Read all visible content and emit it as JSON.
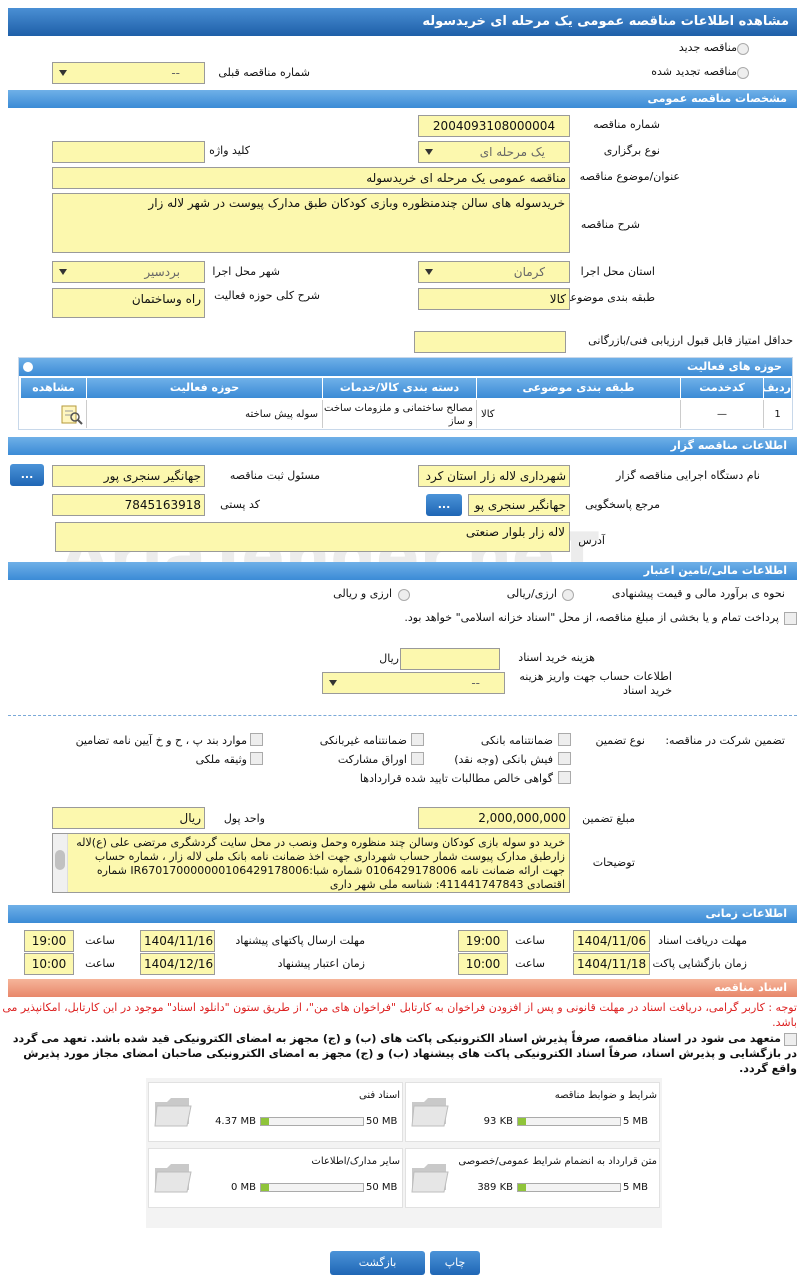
{
  "header": {
    "title": "مشاهده اطلاعات مناقصه عمومی یک مرحله ای خریدسوله"
  },
  "watermark": "AriaTender.neT",
  "top": {
    "new_tender": "مناقصه جدید",
    "renewed": "مناقصه تجدید شده",
    "prev_label": "شماره مناقصه قبلی",
    "prev_value": "--"
  },
  "general": {
    "title": "مشخصات مناقصه عمومی",
    "tender_number": {
      "label": "شماره مناقصه",
      "value": "2004093108000004"
    },
    "type": {
      "label": "نوع برگزاری",
      "value": "یک مرحله ای"
    },
    "keyword": {
      "label": "کلید واژه"
    },
    "subject": {
      "label": "عنوان/موضوع مناقصه",
      "value": "مناقصه عمومی یک مرحله ای خریدسوله"
    },
    "description": {
      "label": "شرح مناقصه",
      "value": "خریدسوله های سالن چندمنظوره وبازی کودکان طبق مدارک پیوست در شهر لاله زار"
    },
    "province": {
      "label": "استان محل اجرا",
      "value": "کرمان"
    },
    "city": {
      "label": "شهر محل اجرا",
      "value": "بردسیر"
    },
    "category": {
      "label": "طبقه بندی موضوعی",
      "value": "کالا"
    },
    "activity": {
      "label": "شرح کلی حوزه فعالیت",
      "value": "راه وساختمان"
    },
    "min_score": {
      "label": "حداقل امتیاز قابل قبول ارزیابی فنی/بازرگانی"
    }
  },
  "activity_table": {
    "title": "حوزه های فعالیت",
    "headers": [
      "ردیف",
      "کدخدمت",
      "طبقه بندی موضوعی",
      "دسته بندی کالا/خدمات",
      "حوزه فعالیت",
      "مشاهده"
    ],
    "rows": [
      [
        "1",
        "—",
        "کالا",
        "مصالح ساختمانی و ملزومات ساخت و ساز",
        "سوله پیش ساخته"
      ]
    ]
  },
  "organizer": {
    "title": "اطلاعات مناقصه گزار",
    "org": {
      "label": "نام دستگاه اجرایی مناقصه گزار",
      "value": "شهرداری لاله زار استان کرد"
    },
    "registrar": {
      "label": "مسئول ثبت مناقصه",
      "value": "جهانگیر سنجری پور"
    },
    "reference": {
      "label": "مرجع پاسخگویی",
      "value": "جهانگیر سنجری پو"
    },
    "postal": {
      "label": "کد پستی",
      "value": "7845163918"
    },
    "address": {
      "label": "آدرس",
      "value": "لاله زار بلوار صنعتی"
    },
    "button": "..."
  },
  "financial": {
    "title": "اطلاعات مالی/تامین اعتبار",
    "method_label": "نحوه ی برآورد مالی و قیمت پیشنهادی",
    "option1": "ارزی/ریالی",
    "option2": "ارزی و ریالی",
    "treasury": "پرداخت تمام و یا بخشی از مبلغ مناقصه، از محل \"اسناد خزانه اسلامی\" خواهد بود.",
    "doc_cost_label": "هزینه خرید اسناد",
    "doc_cost_unit": "ریال",
    "account_label": "اطلاعات حساب جهت واریز هزینه خرید اسناد",
    "account_value": "--"
  },
  "guarantee": {
    "label": "تضمین شرکت در مناقصه:",
    "type_label": "نوع تضمین",
    "options": [
      "ضمانتنامه بانکی",
      "ضمانتنامه غیربانکی",
      "موارد بند پ ، ح و خ آیین نامه تضامین",
      "فیش بانکی (وجه نقد)",
      "اوراق مشارکت",
      "وثیقه ملکی",
      "گواهی خالص مطالبات تایید شده قراردادها"
    ],
    "amount": {
      "label": "مبلغ تضمین",
      "value": "2,000,000,000"
    },
    "currency": {
      "label": "واحد پول",
      "value": "ریال"
    },
    "notes": {
      "label": "توضیحات",
      "value": "خرید دو سوله بازی کودکان وسالن چند منظوره وحمل ونصب در محل سایت گردشگری مرتضی علی (ع)لاله زارطبق مدارک پیوست شمار حساب شهرداری جهت اخذ ضمانت نامه بانک ملی لاله زار ، شماره حساب جهت ارائه ضمانت نامه 0106429178006 شماره شبا:IR670170000000106429178006 شماره اقتصادی 411441747843: شناسه ملی شهر داری"
    }
  },
  "timing": {
    "title": "اطلاعات زمانی",
    "time_label": "ساعت",
    "doc_receive": {
      "label": "مهلت دریافت اسناد",
      "date": "1404/11/06",
      "time": "19:00"
    },
    "send": {
      "label": "مهلت ارسال پاکتهای پیشنهاد",
      "date": "1404/11/16",
      "time": "19:00"
    },
    "opening": {
      "label": "زمان بازگشایی پاکت ها",
      "date": "1404/11/18",
      "time": "10:00"
    },
    "validity": {
      "label": "زمان اعتبار پیشنهاد",
      "date": "1404/12/16",
      "time": "10:00"
    }
  },
  "documents": {
    "title": "اسناد مناقصه",
    "notice": "توجه : کاربر گرامی، دریافت اسناد در مهلت قانونی و پس از افزودن فراخوان به کارتابل \"فراخوان های من\"، از طریق ستون \"دانلود اسناد\" موجود در این کارتابل، امکانپذیر می باشد.",
    "commitment": "متعهد می شود در اسناد مناقصه، صرفاً پذیرش اسناد الکترونیکی پاکت های (ب) و (ج) مجهز به امضای الکترونیکی قید شده باشد. تعهد می گردد در بازگشایی و پذیرش اسناد، صرفاً اسناد الکترونیکی پاکت های پیشنهاد (ب) و (ج) مجهز به امضای الکترونیکی صاحبان امضای مجاز مورد پذیرش واقع گردد.",
    "files": [
      {
        "name": "شرایط و ضوابط مناقصه",
        "size": "93 KB",
        "max": "5 MB"
      },
      {
        "name": "اسناد فنی",
        "size": "4.37 MB",
        "max": "50 MB"
      },
      {
        "name": "متن قرارداد به انضمام شرایط عمومی/خصوصی",
        "size": "389 KB",
        "max": "5 MB"
      },
      {
        "name": "سایر مدارک/اطلاعات",
        "size": "0 MB",
        "max": "50 MB"
      }
    ]
  },
  "buttons": {
    "print": "چاپ",
    "back": "بازگشت"
  }
}
